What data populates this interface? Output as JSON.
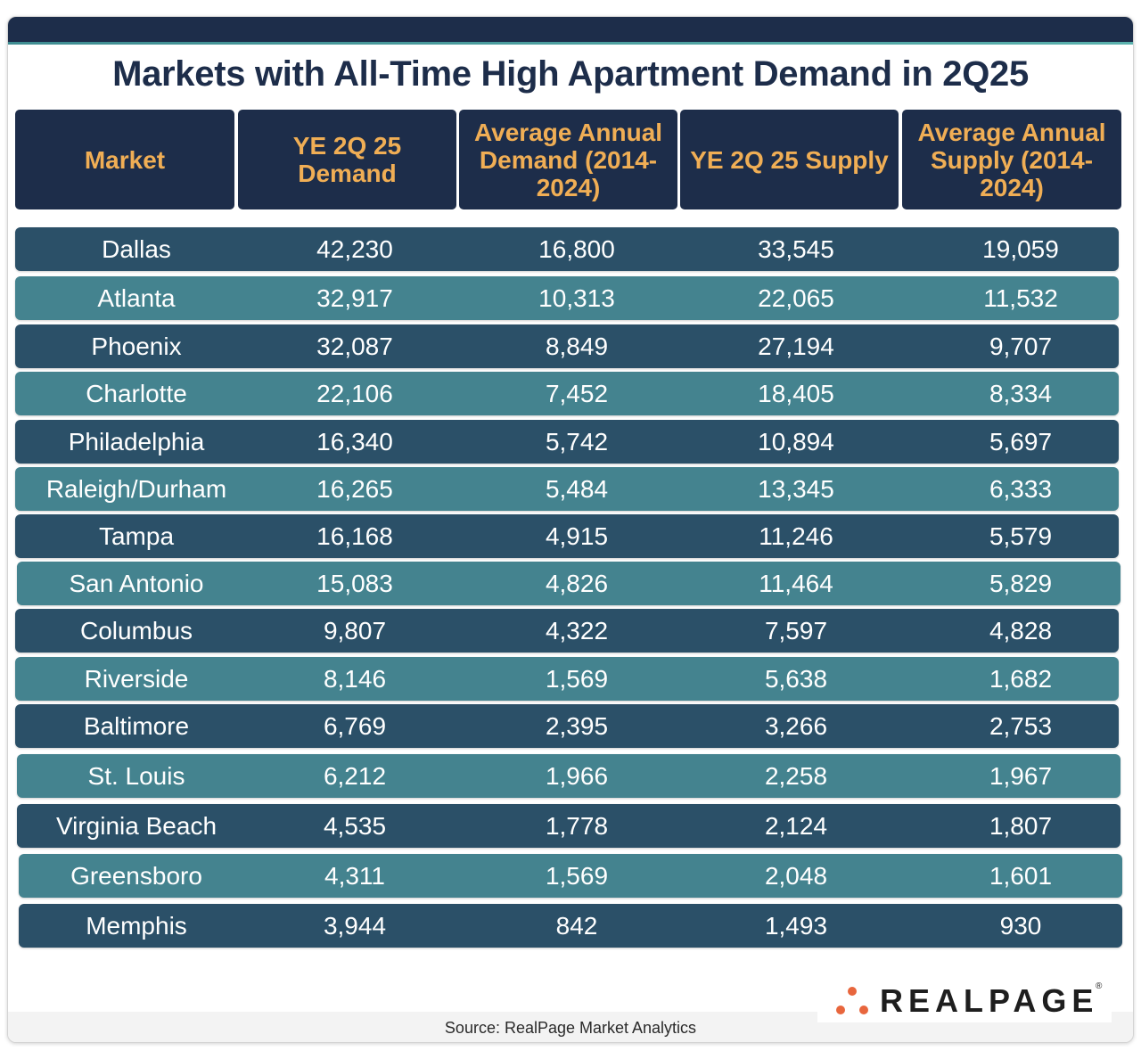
{
  "title": "Markets with All-Time High Apartment Demand in 2Q25",
  "colors": {
    "navy": "#1d2d4a",
    "header_text": "#f0ae55",
    "row_dark": "#2b5068",
    "row_light": "#44838f",
    "logo_dot": "#e8663d"
  },
  "chart_data": {
    "type": "table",
    "title": "Markets with All-Time High Apartment Demand in 2Q25",
    "columns": [
      "Market",
      "YE 2Q 25 Demand",
      "Average Annual Demand (2014-2024)",
      "YE 2Q 25 Supply",
      "Average Annual Supply (2014-2024)"
    ],
    "rows": [
      [
        "Dallas",
        "42,230",
        "16,800",
        "33,545",
        "19,059"
      ],
      [
        "Atlanta",
        "32,917",
        "10,313",
        "22,065",
        "11,532"
      ],
      [
        "Phoenix",
        "32,087",
        "8,849",
        "27,194",
        "9,707"
      ],
      [
        "Charlotte",
        "22,106",
        "7,452",
        "18,405",
        "8,334"
      ],
      [
        "Philadelphia",
        "16,340",
        "5,742",
        "10,894",
        "5,697"
      ],
      [
        "Raleigh/Durham",
        "16,265",
        "5,484",
        "13,345",
        "6,333"
      ],
      [
        "Tampa",
        "16,168",
        "4,915",
        "11,246",
        "5,579"
      ],
      [
        "San Antonio",
        "15,083",
        "4,826",
        "11,464",
        "5,829"
      ],
      [
        "Columbus",
        "9,807",
        "4,322",
        "7,597",
        "4,828"
      ],
      [
        "Riverside",
        "8,146",
        "1,569",
        "5,638",
        "1,682"
      ],
      [
        "Baltimore",
        "6,769",
        "2,395",
        "3,266",
        "2,753"
      ],
      [
        "St. Louis",
        "6,212",
        "1,966",
        "2,258",
        "1,967"
      ],
      [
        "Virginia Beach",
        "4,535",
        "1,778",
        "2,124",
        "1,807"
      ],
      [
        "Greensboro",
        "4,311",
        "1,569",
        "2,048",
        "1,601"
      ],
      [
        "Memphis",
        "3,944",
        "842",
        "1,493",
        "930"
      ]
    ]
  },
  "source": "Source: RealPage Market Analytics",
  "logo": {
    "text": "REALPAGE",
    "registered": "®"
  }
}
